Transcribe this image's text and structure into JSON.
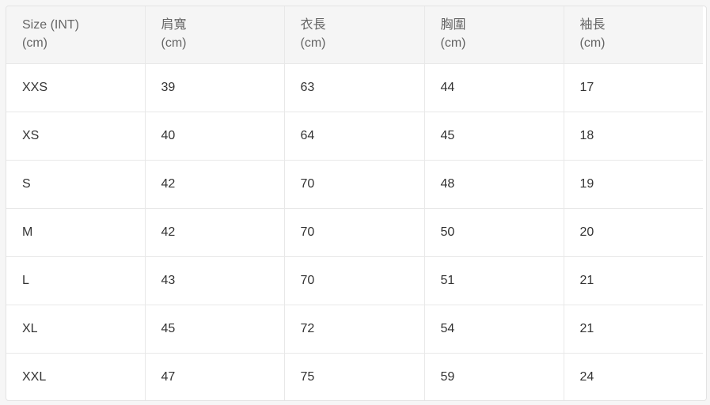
{
  "table": {
    "headers": [
      {
        "name": "Size (INT)",
        "unit": "(cm)"
      },
      {
        "name": "肩寬",
        "unit": "(cm)"
      },
      {
        "name": "衣長",
        "unit": "(cm)"
      },
      {
        "name": "胸圍",
        "unit": "(cm)"
      },
      {
        "name": "袖長",
        "unit": "(cm)"
      }
    ],
    "rows": [
      [
        "XXS",
        "39",
        "63",
        "44",
        "17"
      ],
      [
        "XS",
        "40",
        "64",
        "45",
        "18"
      ],
      [
        "S",
        "42",
        "70",
        "48",
        "19"
      ],
      [
        "M",
        "42",
        "70",
        "50",
        "20"
      ],
      [
        "L",
        "43",
        "70",
        "51",
        "21"
      ],
      [
        "XL",
        "45",
        "72",
        "54",
        "21"
      ],
      [
        "XXL",
        "47",
        "75",
        "59",
        "24"
      ]
    ]
  }
}
